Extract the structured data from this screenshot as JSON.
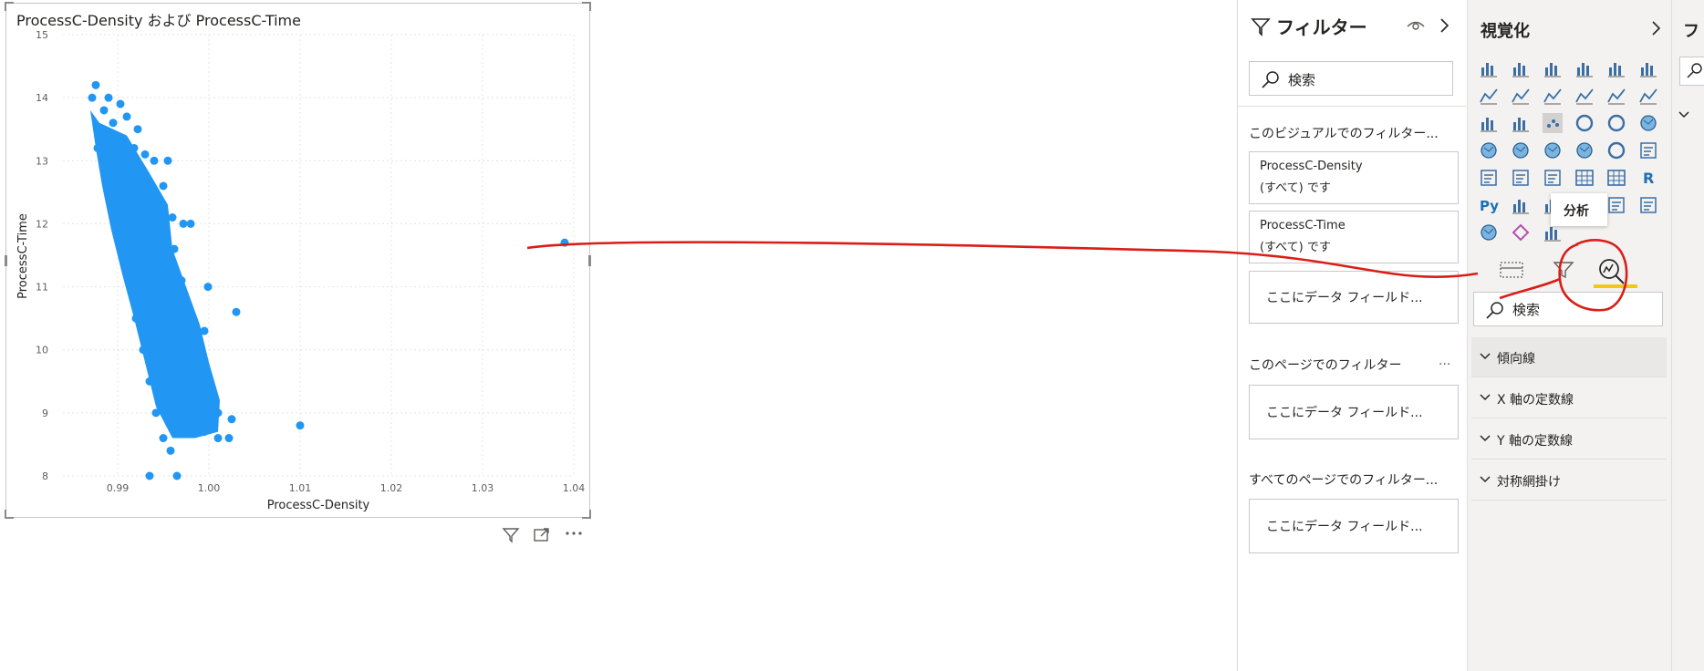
{
  "chart": {
    "title": "ProcessC-Density および ProcessC-Time",
    "xlabel": "ProcessC-Density",
    "ylabel": "ProcessC-Time"
  },
  "chart_data": {
    "type": "scatter",
    "title": "ProcessC-Density および ProcessC-Time",
    "xlabel": "ProcessC-Density",
    "ylabel": "ProcessC-Time",
    "xlim": [
      0.984,
      1.04
    ],
    "ylim": [
      8,
      15
    ],
    "x_ticks": [
      "0.99",
      "1.00",
      "1.01",
      "1.02",
      "1.03",
      "1.04"
    ],
    "y_ticks": [
      "8",
      "9",
      "10",
      "11",
      "12",
      "13",
      "14",
      "15"
    ],
    "grid": true,
    "color": "#2196f3",
    "points": [
      {
        "x": 0.9876,
        "y": 14.2
      },
      {
        "x": 0.9872,
        "y": 14.0
      },
      {
        "x": 0.989,
        "y": 14.0
      },
      {
        "x": 0.9903,
        "y": 13.9
      },
      {
        "x": 0.9885,
        "y": 13.8
      },
      {
        "x": 0.988,
        "y": 13.5
      },
      {
        "x": 0.9895,
        "y": 13.6
      },
      {
        "x": 0.991,
        "y": 13.7
      },
      {
        "x": 0.9922,
        "y": 13.5
      },
      {
        "x": 0.9878,
        "y": 13.2
      },
      {
        "x": 0.989,
        "y": 13.3
      },
      {
        "x": 0.9905,
        "y": 13.3
      },
      {
        "x": 0.9918,
        "y": 13.2
      },
      {
        "x": 0.993,
        "y": 13.1
      },
      {
        "x": 0.994,
        "y": 13.0
      },
      {
        "x": 0.9955,
        "y": 13.0
      },
      {
        "x": 0.9884,
        "y": 12.9
      },
      {
        "x": 0.9898,
        "y": 12.8
      },
      {
        "x": 0.9912,
        "y": 12.7
      },
      {
        "x": 0.9925,
        "y": 12.7
      },
      {
        "x": 0.9936,
        "y": 12.6
      },
      {
        "x": 0.995,
        "y": 12.6
      },
      {
        "x": 0.9892,
        "y": 12.5
      },
      {
        "x": 0.9905,
        "y": 12.4
      },
      {
        "x": 0.9918,
        "y": 12.4
      },
      {
        "x": 0.993,
        "y": 12.3
      },
      {
        "x": 0.9945,
        "y": 12.2
      },
      {
        "x": 0.996,
        "y": 12.1
      },
      {
        "x": 0.9972,
        "y": 12.0
      },
      {
        "x": 0.998,
        "y": 12.0
      },
      {
        "x": 0.99,
        "y": 12.1
      },
      {
        "x": 0.9912,
        "y": 12.0
      },
      {
        "x": 0.9925,
        "y": 11.9
      },
      {
        "x": 0.9938,
        "y": 11.8
      },
      {
        "x": 0.995,
        "y": 11.7
      },
      {
        "x": 0.9962,
        "y": 11.6
      },
      {
        "x": 0.9905,
        "y": 11.6
      },
      {
        "x": 0.9918,
        "y": 11.5
      },
      {
        "x": 0.993,
        "y": 11.4
      },
      {
        "x": 0.9945,
        "y": 11.3
      },
      {
        "x": 0.9958,
        "y": 11.2
      },
      {
        "x": 0.997,
        "y": 11.1
      },
      {
        "x": 0.9912,
        "y": 11.1
      },
      {
        "x": 0.9925,
        "y": 11.0
      },
      {
        "x": 0.9938,
        "y": 10.9
      },
      {
        "x": 0.995,
        "y": 10.8
      },
      {
        "x": 0.9962,
        "y": 10.7
      },
      {
        "x": 0.9975,
        "y": 10.6
      },
      {
        "x": 0.9999,
        "y": 11.0
      },
      {
        "x": 1.003,
        "y": 10.6
      },
      {
        "x": 0.992,
        "y": 10.5
      },
      {
        "x": 0.9932,
        "y": 10.4
      },
      {
        "x": 0.9945,
        "y": 10.3
      },
      {
        "x": 0.9958,
        "y": 10.2
      },
      {
        "x": 0.997,
        "y": 10.1
      },
      {
        "x": 0.9985,
        "y": 10.2
      },
      {
        "x": 0.9995,
        "y": 10.3
      },
      {
        "x": 0.9928,
        "y": 10.0
      },
      {
        "x": 0.994,
        "y": 9.9
      },
      {
        "x": 0.9952,
        "y": 9.8
      },
      {
        "x": 0.9965,
        "y": 9.7
      },
      {
        "x": 0.9978,
        "y": 9.6
      },
      {
        "x": 0.999,
        "y": 9.7
      },
      {
        "x": 0.9935,
        "y": 9.5
      },
      {
        "x": 0.9948,
        "y": 9.4
      },
      {
        "x": 0.996,
        "y": 9.3
      },
      {
        "x": 0.9972,
        "y": 9.2
      },
      {
        "x": 0.9985,
        "y": 9.1
      },
      {
        "x": 0.9998,
        "y": 9.2
      },
      {
        "x": 1.001,
        "y": 9.0
      },
      {
        "x": 1.0025,
        "y": 8.9
      },
      {
        "x": 0.9942,
        "y": 9.0
      },
      {
        "x": 0.9955,
        "y": 8.9
      },
      {
        "x": 0.9968,
        "y": 8.8
      },
      {
        "x": 0.998,
        "y": 8.7
      },
      {
        "x": 0.9995,
        "y": 8.7
      },
      {
        "x": 1.001,
        "y": 8.6
      },
      {
        "x": 1.0022,
        "y": 8.6
      },
      {
        "x": 0.995,
        "y": 8.6
      },
      {
        "x": 0.9958,
        "y": 8.4
      },
      {
        "x": 0.9935,
        "y": 8.0
      },
      {
        "x": 0.9965,
        "y": 8.0
      },
      {
        "x": 1.01,
        "y": 8.8
      },
      {
        "x": 1.039,
        "y": 11.7
      }
    ]
  },
  "filter_pane": {
    "title": "フィルター",
    "search_placeholder": "検索",
    "visual_section": "このビジュアルでのフィルター...",
    "card1_line1": "ProcessC-Density",
    "card1_line2": "(すべて) です",
    "card2_line1": "ProcessC-Time",
    "card2_line2": "(すべて) です",
    "drop_visual": "ここにデータ フィールド...",
    "page_section": "このページでのフィルター",
    "page_more": "...",
    "drop_page": "ここにデータ フィールド...",
    "all_pages_section": "すべてのページでのフィルター...",
    "drop_all_pages": "ここにデータ フィールド..."
  },
  "viz_pane": {
    "title": "視覚化",
    "tooltip": "分析",
    "analysis_search_placeholder": "検索",
    "py_label": "Py",
    "r_label": "R",
    "accordions": [
      "傾向線",
      "X 軸の定数線",
      "Y 軸の定数線",
      "対称網掛け"
    ],
    "accent_color": "#f2c811"
  },
  "fields_pane": {
    "title": "フ"
  },
  "annotation": {
    "color": "#d91e18"
  }
}
